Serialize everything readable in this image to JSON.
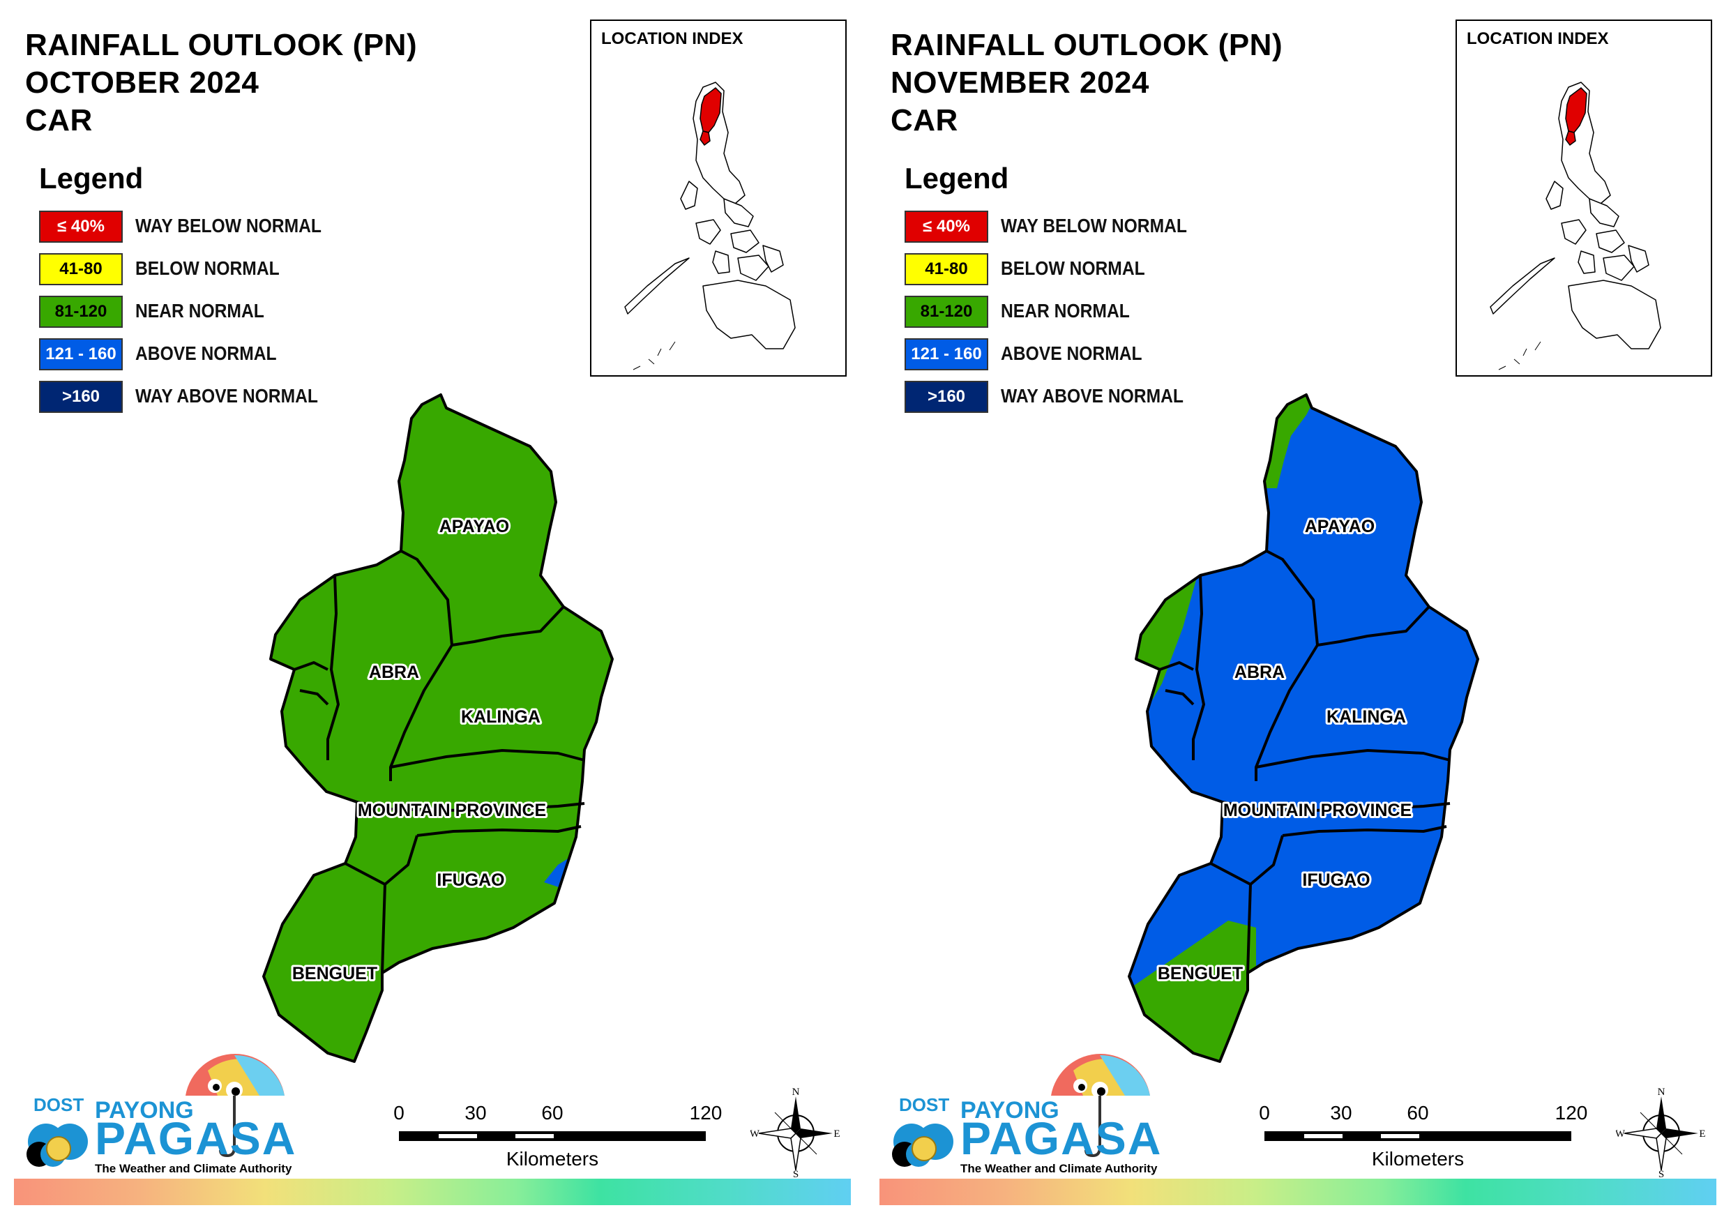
{
  "panels": [
    {
      "title_lines": [
        "RAINFALL OUTLOOK (PN)",
        "OCTOBER 2024",
        "CAR"
      ],
      "legend_title": "Legend",
      "legend": [
        {
          "swatch": "≤ 40%",
          "label": "WAY BELOW NORMAL",
          "color": "#e00000",
          "text_color": "#ffffff"
        },
        {
          "swatch": "41-80",
          "label": "BELOW NORMAL",
          "color": "#ffff00",
          "text_color": "#000000"
        },
        {
          "swatch": "81-120",
          "label": "NEAR NORMAL",
          "color": "#38a800",
          "text_color": "#000000"
        },
        {
          "swatch": "121 - 160",
          "label": "ABOVE NORMAL",
          "color": "#005ce6",
          "text_color": "#ffffff"
        },
        {
          "swatch": ">160",
          "label": "WAY ABOVE NORMAL",
          "color": "#002673",
          "text_color": "#ffffff"
        }
      ],
      "index_label": "LOCATION INDEX",
      "provinces": [
        {
          "name": "APAYAO",
          "category": "NEAR NORMAL"
        },
        {
          "name": "ABRA",
          "category": "NEAR NORMAL"
        },
        {
          "name": "KALINGA",
          "category": "NEAR NORMAL"
        },
        {
          "name": "MOUNTAIN PROVINCE",
          "category": "NEAR NORMAL"
        },
        {
          "name": "IFUGAO",
          "category": "NEAR NORMAL, small ABOVE NORMAL area in east"
        },
        {
          "name": "BENGUET",
          "category": "NEAR NORMAL"
        }
      ],
      "base_color": "#38a800",
      "overlay_color": "#005ce6"
    },
    {
      "title_lines": [
        "RAINFALL OUTLOOK (PN)",
        "NOVEMBER 2024",
        "CAR"
      ],
      "legend_title": "Legend",
      "legend": [
        {
          "swatch": "≤ 40%",
          "label": "WAY BELOW NORMAL",
          "color": "#e00000",
          "text_color": "#ffffff"
        },
        {
          "swatch": "41-80",
          "label": "BELOW NORMAL",
          "color": "#ffff00",
          "text_color": "#000000"
        },
        {
          "swatch": "81-120",
          "label": "NEAR NORMAL",
          "color": "#38a800",
          "text_color": "#000000"
        },
        {
          "swatch": "121 - 160",
          "label": "ABOVE NORMAL",
          "color": "#005ce6",
          "text_color": "#ffffff"
        },
        {
          "swatch": ">160",
          "label": "WAY ABOVE NORMAL",
          "color": "#002673",
          "text_color": "#ffffff"
        }
      ],
      "index_label": "LOCATION INDEX",
      "provinces": [
        {
          "name": "APAYAO",
          "category": "ABOVE NORMAL, NEAR NORMAL strip in northwest"
        },
        {
          "name": "ABRA",
          "category": "ABOVE NORMAL east, NEAR NORMAL west"
        },
        {
          "name": "KALINGA",
          "category": "ABOVE NORMAL"
        },
        {
          "name": "MOUNTAIN PROVINCE",
          "category": "ABOVE NORMAL"
        },
        {
          "name": "IFUGAO",
          "category": "ABOVE NORMAL"
        },
        {
          "name": "BENGUET",
          "category": "NEAR NORMAL, ABOVE NORMAL northwest"
        }
      ],
      "base_color": "#005ce6",
      "overlay_color": "#38a800"
    }
  ],
  "scale": {
    "ticks": [
      "0",
      "30",
      "60",
      "120"
    ],
    "unit": "Kilometers"
  },
  "compass": {
    "n": "N",
    "s": "S",
    "e": "E",
    "w": "W"
  },
  "logo": {
    "dost": "DOST",
    "payong": "PAYONG",
    "pagasa": "PAGASA",
    "tagline": "The Weather and Climate Authority"
  }
}
